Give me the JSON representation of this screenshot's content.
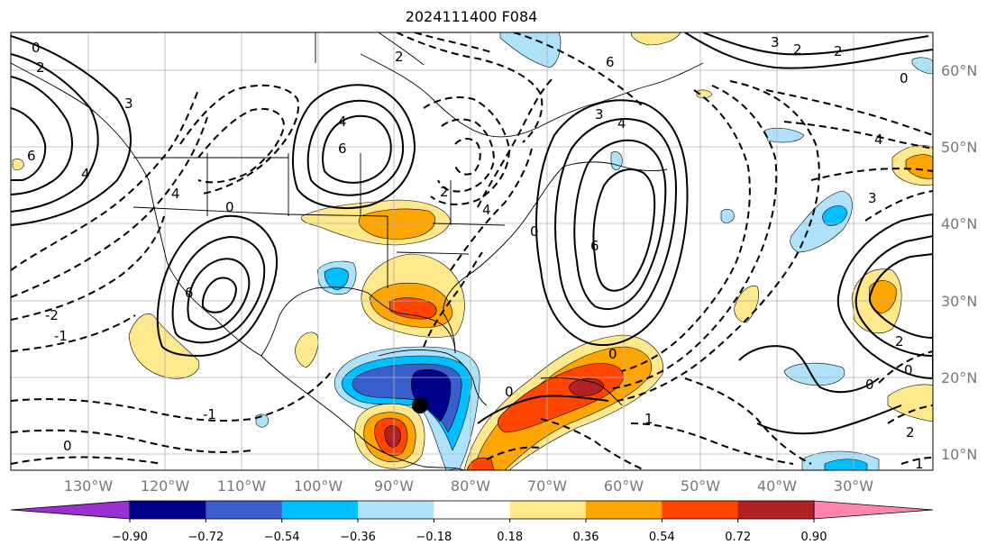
{
  "title": "2024111400 F084",
  "map": {
    "lon_labels": [
      "130°W",
      "120°W",
      "110°W",
      "100°W",
      "90°W",
      "80°W",
      "70°W",
      "60°W",
      "50°W",
      "40°W",
      "30°W"
    ],
    "lat_labels": [
      "60°N",
      "50°N",
      "40°N",
      "30°N",
      "20°N",
      "10°N"
    ],
    "contour_labels": [
      "6",
      "4",
      "2",
      "0",
      "-2",
      "-1",
      "3",
      "1"
    ],
    "marker": "storm-center-dot"
  },
  "colorbar": {
    "ticks": [
      "−0.90",
      "−0.72",
      "−0.54",
      "−0.36",
      "−0.18",
      "0.18",
      "0.36",
      "0.54",
      "0.72",
      "0.90"
    ],
    "colors": [
      "#9b30d0",
      "#00008b",
      "#3a5fcd",
      "#00bfff",
      "#aee2fa",
      "#ffffff",
      "#fde88c",
      "#ffa500",
      "#ff4500",
      "#b22222",
      "#ff85b0"
    ]
  }
}
